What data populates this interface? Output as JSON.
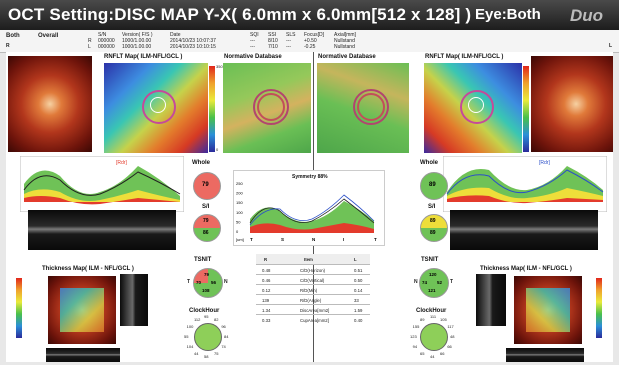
{
  "header": {
    "title": "OCT Setting:DISC MAP Y-X( 6.0mm x 6.0mm[512 x 128] )",
    "eye": "Eye:Both",
    "logo": "Duo"
  },
  "info": {
    "both": "Both",
    "overall": "Overall",
    "r": "R",
    "l": "L",
    "headers": [
      "S/N",
      "Version( F/S )",
      "Date",
      "SQI",
      "SSI",
      "SLS",
      "Focus[D]",
      "Axial[mm]"
    ],
    "rows": [
      [
        "R",
        "000000",
        "1000/1.00.00",
        "2014/10/23 10:07:37",
        "---",
        "8/10",
        "---",
        "+0.50",
        "Nullstand"
      ],
      [
        "L",
        "000000",
        "1000/1.00.00",
        "2014/10/23 10:10:15",
        "---",
        "7/10",
        "---",
        "-0.25",
        "Nullstand"
      ]
    ]
  },
  "maps": {
    "rnfl_left": "RNFLT Map( ILM-NFL/GCL )",
    "normdb_left": "Normative Database",
    "normdb_right": "Normative Database",
    "rnfl_right": "RNFLT Map( ILM-NFL/GCL )",
    "scale_top": "350",
    "scale_bottom": "0"
  },
  "center": {
    "whole_left_label": "Whole",
    "whole_left_value": "79",
    "whole_right_label": "Whole",
    "whole_right_value": "89",
    "si_left_label": "S/I",
    "si_left_top": "79",
    "si_left_bottom": "86",
    "si_right_label": "S/I",
    "si_right_top": "89",
    "si_right_bottom": "89",
    "tsnit_left_label": "TSNIT",
    "tsnit_left": {
      "s": "79",
      "t": "70",
      "n": "56",
      "i": "108",
      "T": "T",
      "N": "N"
    },
    "tsnit_right_label": "TSNIT",
    "tsnit_right": {
      "s": "120",
      "t": "52",
      "n": "74",
      "i": "121",
      "T": "T",
      "N": "N",
      "S": "S",
      "I": "I"
    },
    "clock_left_label": "ClockHour",
    "clock_right_label": "ClockHour",
    "symmetry_title": "Symmetry 88%",
    "sym_yticks": [
      "250",
      "200",
      "150",
      "100",
      "50",
      "0"
    ],
    "sym_xticks": [
      "T",
      "S",
      "N",
      "I",
      "T"
    ],
    "sym_xunit": "[um]",
    "table_headers": [
      "R",
      "Item",
      "L"
    ],
    "table_rows": [
      [
        "0.48",
        "C/D(Horizon)",
        "0.51"
      ],
      [
        "0.46",
        "C/D(Vertical)",
        "0.50"
      ],
      [
        "0.12",
        "R/D(Min)",
        "0.14"
      ],
      [
        "139",
        "R/D(Angle)",
        "33"
      ],
      [
        "1.34",
        "DiscArea[mm2]",
        "1.59"
      ],
      [
        "0.33",
        "CupArea[mm2]",
        "0.40"
      ]
    ]
  },
  "profiles": {
    "left_label": "[Rdr]",
    "right_label": "[Rdr]"
  },
  "thickness": {
    "left": "Thickness Map( ILM - NFL/GCL )",
    "right": "Thickness Map( ILM - NFL/GCL )"
  },
  "clock_left": [
    "95",
    "82",
    "96",
    "84",
    "74",
    "75",
    "58",
    "44",
    "104",
    "55",
    "100",
    "112"
  ],
  "clock_right": [
    "111",
    "105",
    "117",
    "48",
    "66",
    "66",
    "44",
    "65",
    "94",
    "123",
    "155",
    "89"
  ],
  "colors": {
    "green": "#5dbb4a",
    "yellow": "#eede3a",
    "red": "#e33b2c"
  }
}
